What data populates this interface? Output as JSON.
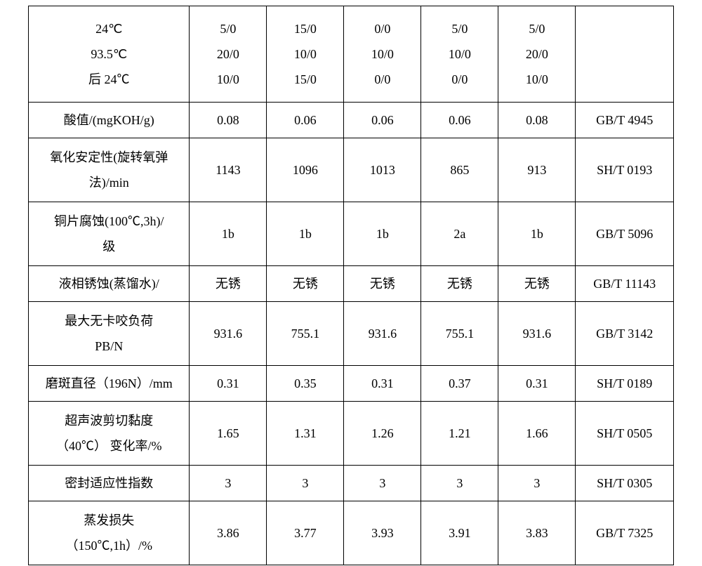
{
  "table": {
    "label_width": 230,
    "data_width": 110,
    "std_width": 140,
    "border_color": "#000000",
    "background": "#ffffff",
    "font_size": 18,
    "rows": [
      {
        "type": "multi",
        "label_lines": [
          "24℃",
          "93.5℃",
          "后 24℃"
        ],
        "col_lines": [
          [
            "5/0",
            "20/0",
            "10/0"
          ],
          [
            "15/0",
            "10/0",
            "15/0"
          ],
          [
            "0/0",
            "10/0",
            "0/0"
          ],
          [
            "5/0",
            "10/0",
            "0/0"
          ],
          [
            "5/0",
            "20/0",
            "10/0"
          ]
        ],
        "standard": ""
      },
      {
        "type": "single",
        "label": "酸值/(mgKOH/g)",
        "values": [
          "0.08",
          "0.06",
          "0.06",
          "0.06",
          "0.08"
        ],
        "standard": "GB/T 4945"
      },
      {
        "type": "tall",
        "label_lines": [
          "氧化安定性(旋转氧弹",
          "法)/min"
        ],
        "values": [
          "1143",
          "1096",
          "1013",
          "865",
          "913"
        ],
        "standard": "SH/T 0193"
      },
      {
        "type": "tall",
        "label_lines": [
          "铜片腐蚀(100℃,3h)/",
          "级"
        ],
        "values": [
          "1b",
          "1b",
          "1b",
          "2a",
          "1b"
        ],
        "standard": "GB/T 5096"
      },
      {
        "type": "single",
        "label": "液相锈蚀(蒸馏水)/",
        "values": [
          "无锈",
          "无锈",
          "无锈",
          "无锈",
          "无锈"
        ],
        "standard": "GB/T 11143"
      },
      {
        "type": "tall",
        "label_lines": [
          "最大无卡咬负荷",
          "PB/N"
        ],
        "values": [
          "931.6",
          "755.1",
          "931.6",
          "755.1",
          "931.6"
        ],
        "standard": "GB/T 3142"
      },
      {
        "type": "single",
        "label": "磨斑直径（196N）/mm",
        "values": [
          "0.31",
          "0.35",
          "0.31",
          "0.37",
          "0.31"
        ],
        "standard": "SH/T 0189"
      },
      {
        "type": "tall",
        "label_lines": [
          "超声波剪切黏度",
          "（40℃） 变化率/%"
        ],
        "values": [
          "1.65",
          "1.31",
          "1.26",
          "1.21",
          "1.66"
        ],
        "standard": "SH/T 0505"
      },
      {
        "type": "single",
        "label": "密封适应性指数",
        "values": [
          "3",
          "3",
          "3",
          "3",
          "3"
        ],
        "standard": "SH/T 0305"
      },
      {
        "type": "tall",
        "label_lines": [
          "蒸发损失",
          "（150℃,1h）/%"
        ],
        "values": [
          "3.86",
          "3.77",
          "3.93",
          "3.91",
          "3.83"
        ],
        "standard": "GB/T 7325"
      }
    ]
  }
}
